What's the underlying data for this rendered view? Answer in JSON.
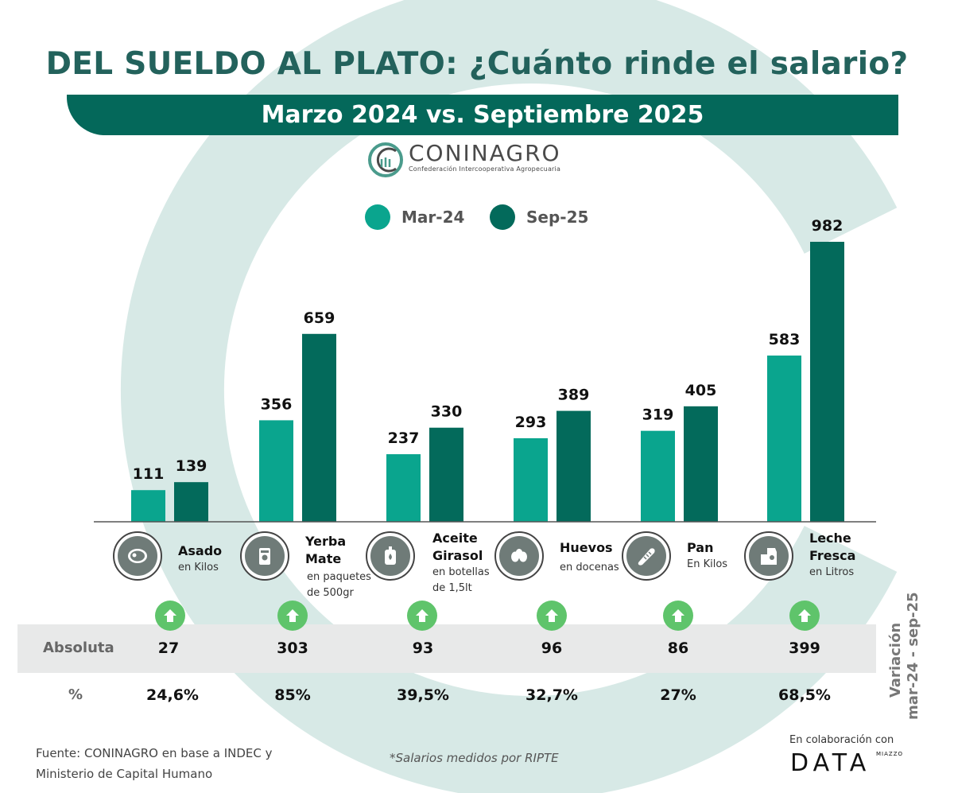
{
  "title": "DEL SUELDO AL PLATO: ¿Cuánto rinde el salario?",
  "subtitle": "Marzo 2024 vs. Septiembre 2025",
  "logo": {
    "name": "CONINAGRO",
    "tagline": "Confederación Intercooperativa Agropecuaria"
  },
  "colors": {
    "mar24": "#0aa58e",
    "sep25": "#036a5b",
    "background_c": "#d7e9e6",
    "title": "#23625c",
    "arrow": "#5fc46b"
  },
  "chart_data": {
    "type": "bar",
    "categories": [
      "Asado",
      "Yerba Mate",
      "Aceite Girasol",
      "Huevos",
      "Pan",
      "Leche Fresca"
    ],
    "series": [
      {
        "name": "Mar-24",
        "values": [
          111,
          356,
          237,
          293,
          319,
          583
        ]
      },
      {
        "name": "Sep-25",
        "values": [
          139,
          659,
          330,
          389,
          405,
          982
        ]
      }
    ],
    "legend": "top-center",
    "grid": false
  },
  "items": [
    {
      "name": "Asado",
      "unit": "en Kilos",
      "icon": "steak-icon",
      "absolute": "27",
      "percent": "24,6%"
    },
    {
      "name": "Yerba Mate",
      "name_lines": [
        "Yerba",
        "Mate"
      ],
      "unit_lines": [
        "en paquetes",
        "de 500gr"
      ],
      "icon": "yerba-package-icon",
      "absolute": "303",
      "percent": "85%"
    },
    {
      "name": "Aceite Girasol",
      "name_lines": [
        "Aceite",
        "Girasol"
      ],
      "unit_lines": [
        "en botellas",
        "de 1,5lt"
      ],
      "icon": "oil-bottle-icon",
      "absolute": "93",
      "percent": "39,5%"
    },
    {
      "name": "Huevos",
      "unit": "en docenas",
      "icon": "eggs-icon",
      "absolute": "96",
      "percent": "32,7%"
    },
    {
      "name": "Pan",
      "unit": "En Kilos",
      "icon": "bread-icon",
      "absolute": "86",
      "percent": "27%"
    },
    {
      "name": "Leche Fresca",
      "name_lines": [
        "Leche",
        "Fresca"
      ],
      "unit": "en Litros",
      "icon": "milk-icon",
      "absolute": "399",
      "percent": "68,5%"
    }
  ],
  "table": {
    "absolute_label": "Absoluta",
    "percent_label": "%",
    "variation_title": "Variación",
    "variation_period": "mar-24 - sep-25"
  },
  "footer": {
    "source_line1": "Fuente: CONINAGRO en base a INDEC y",
    "source_line2": "Ministerio de Capital Humano",
    "note": "*Salarios medidos por RIPTE",
    "collab": "En colaboración con",
    "data_logo": "DATA",
    "data_logo_small": "MIAZZO"
  }
}
